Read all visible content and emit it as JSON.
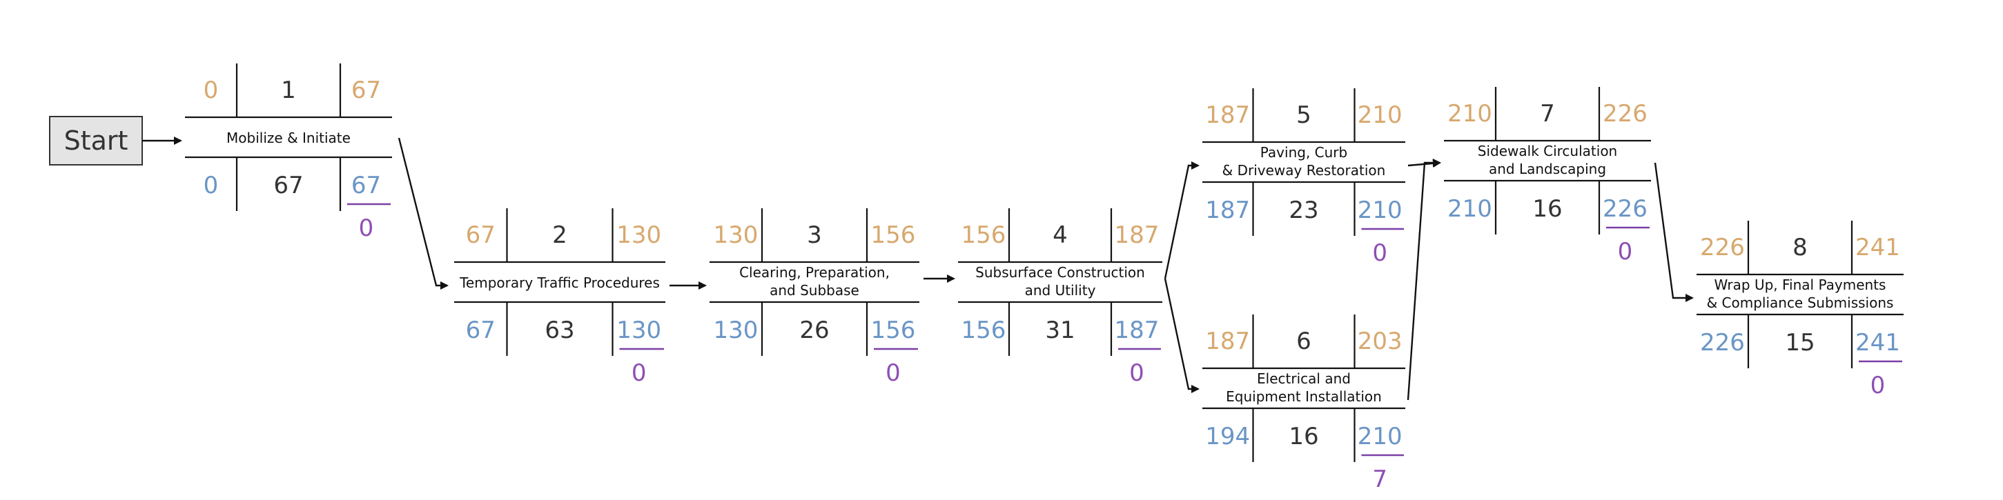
{
  "colors": {
    "early": "#D7A86E",
    "late": "#6A95C6",
    "duration": "#333333",
    "float": "#8E4FB3",
    "float_line": "#7A3FA6",
    "start_fill": "#E4E4E4"
  },
  "start": {
    "label": "Start"
  },
  "activities": [
    {
      "id": "1",
      "es": "0",
      "ef": "67",
      "ls": "0",
      "duration": "67",
      "lf": "67",
      "float": "0",
      "name_lines": [
        "Mobilize & Initiate"
      ]
    },
    {
      "id": "2",
      "es": "67",
      "ef": "130",
      "ls": "67",
      "duration": "63",
      "lf": "130",
      "float": "0",
      "name_lines": [
        "Temporary Traffic Procedures"
      ]
    },
    {
      "id": "3",
      "es": "130",
      "ef": "156",
      "ls": "130",
      "duration": "26",
      "lf": "156",
      "float": "0",
      "name_lines": [
        "Clearing, Preparation,",
        "and Subbase"
      ]
    },
    {
      "id": "4",
      "es": "156",
      "ef": "187",
      "ls": "156",
      "duration": "31",
      "lf": "187",
      "float": "0",
      "name_lines": [
        "Subsurface Construction",
        "and Utility"
      ]
    },
    {
      "id": "5",
      "es": "187",
      "ef": "210",
      "ls": "187",
      "duration": "23",
      "lf": "210",
      "float": "0",
      "name_lines": [
        "Paving, Curb",
        "& Driveway Restoration"
      ]
    },
    {
      "id": "6",
      "es": "187",
      "ef": "203",
      "ls": "194",
      "duration": "16",
      "lf": "210",
      "float": "7",
      "name_lines": [
        "Electrical and",
        "Equipment Installation"
      ]
    },
    {
      "id": "7",
      "es": "210",
      "ef": "226",
      "ls": "210",
      "duration": "16",
      "lf": "226",
      "float": "0",
      "name_lines": [
        "Sidewalk Circulation",
        "and Landscaping"
      ]
    },
    {
      "id": "8",
      "es": "226",
      "ef": "241",
      "ls": "226",
      "duration": "15",
      "lf": "241",
      "float": "0",
      "name_lines": [
        "Wrap Up, Final Payments",
        "& Compliance Submissions"
      ]
    }
  ]
}
